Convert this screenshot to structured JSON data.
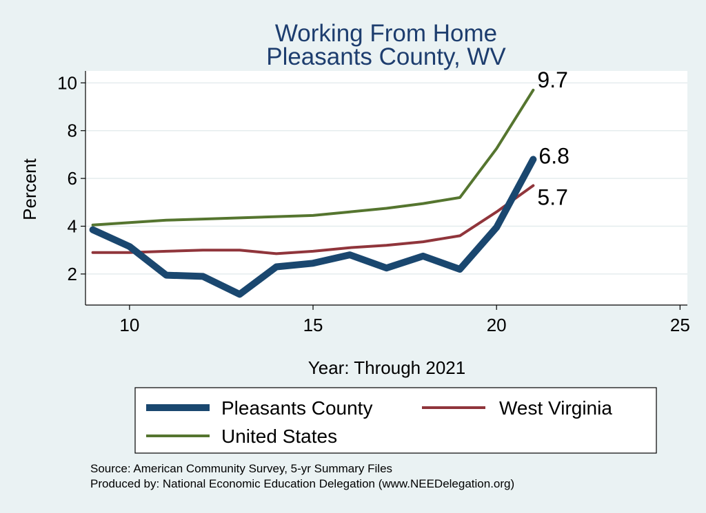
{
  "chart_data": {
    "type": "line",
    "title": [
      "Working From Home",
      "Pleasants County, WV"
    ],
    "xlabel": "Year: Through 2021",
    "ylabel": "Percent",
    "xlim": [
      8.8,
      25.2
    ],
    "ylim": [
      0.7,
      10.5
    ],
    "xticks": [
      10,
      15,
      20,
      25
    ],
    "yticks": [
      2,
      4,
      6,
      8,
      10
    ],
    "grid": true,
    "legend_position": "bottom",
    "x": [
      9,
      10,
      11,
      12,
      13,
      14,
      15,
      16,
      17,
      18,
      19,
      20,
      21
    ],
    "series": [
      {
        "name": "Pleasants County",
        "color": "#1a476f",
        "values": [
          3.85,
          3.15,
          1.95,
          1.9,
          1.15,
          2.3,
          2.45,
          2.8,
          2.25,
          2.75,
          2.2,
          3.95,
          6.8
        ],
        "end_label": "6.8"
      },
      {
        "name": "West Virginia",
        "color": "#90353b",
        "values": [
          2.9,
          2.9,
          2.95,
          3.0,
          3.0,
          2.85,
          2.95,
          3.1,
          3.2,
          3.35,
          3.6,
          4.6,
          5.7
        ],
        "end_label": "5.7"
      },
      {
        "name": "United States",
        "color": "#55752f",
        "values": [
          4.05,
          4.15,
          4.25,
          4.3,
          4.35,
          4.4,
          4.45,
          4.6,
          4.75,
          4.95,
          5.2,
          7.25,
          9.7
        ],
        "end_label": "9.7"
      }
    ]
  },
  "notes": [
    "Source: American Community Survey, 5-yr Summary Files",
    "Produced by: National Economic Education Delegation (www.NEEDelegation.org)"
  ]
}
